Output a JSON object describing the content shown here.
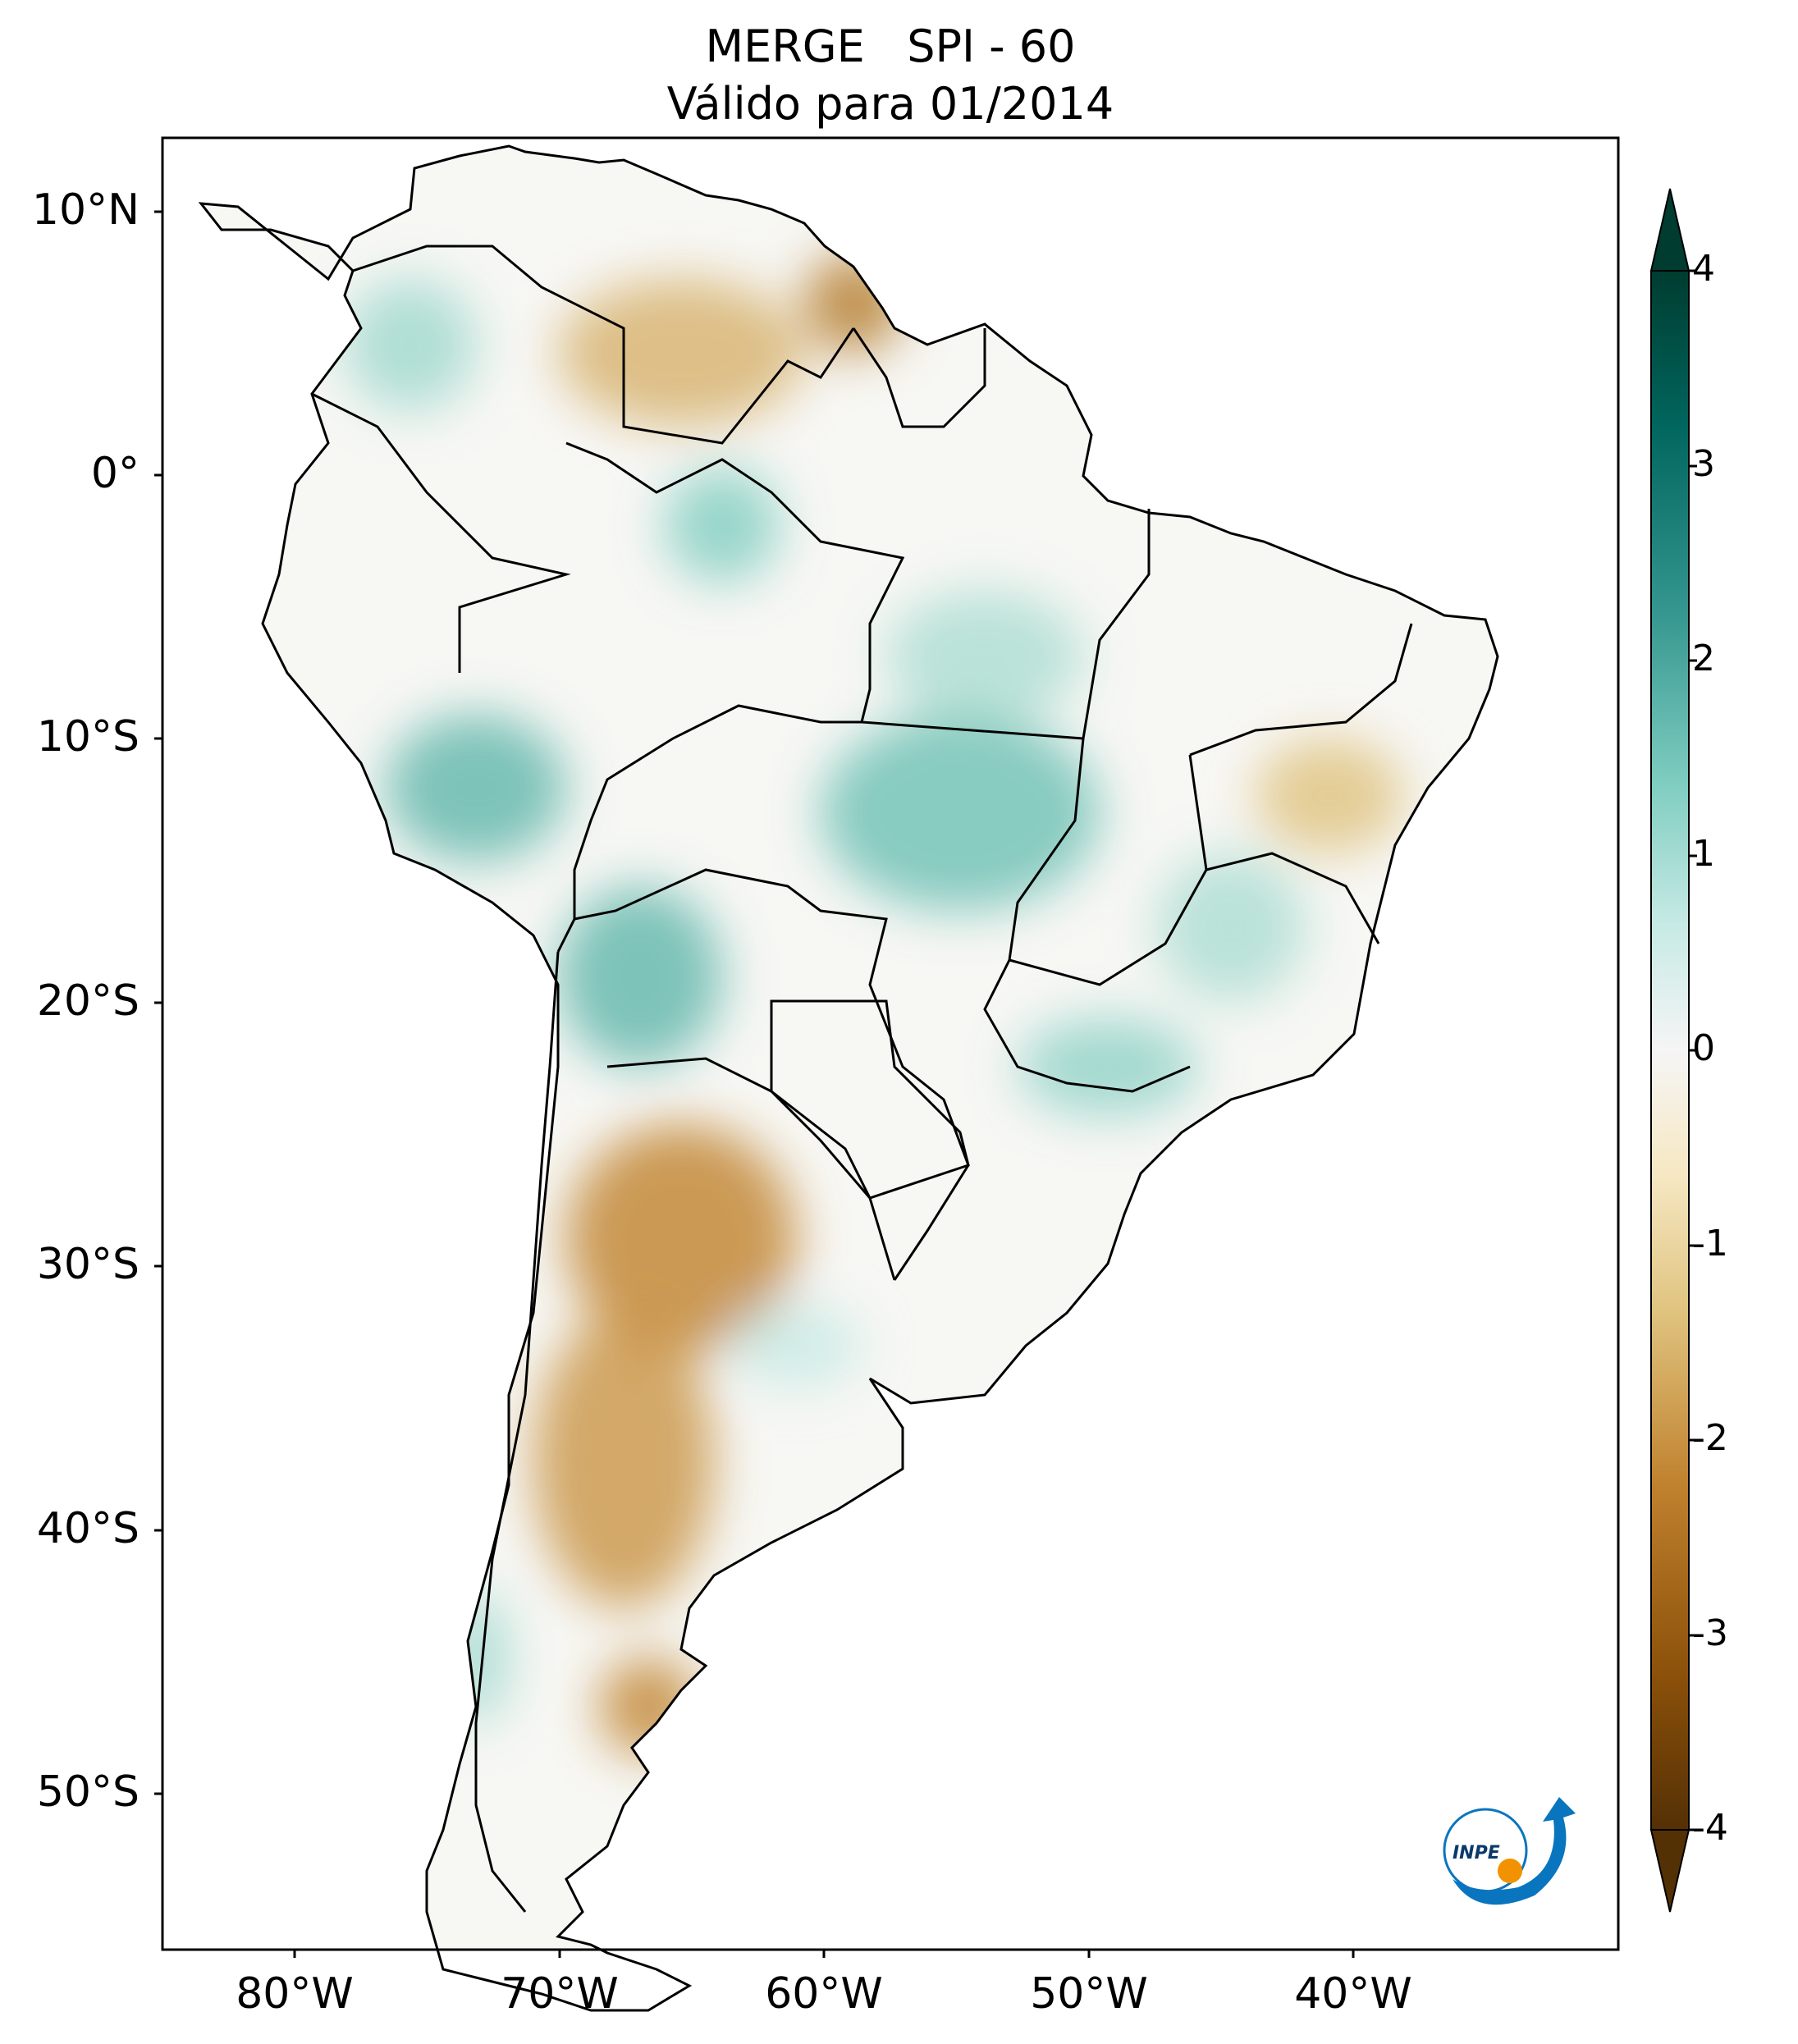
{
  "title": {
    "line1": "MERGE   SPI - 60",
    "line2": "Válido para 01/2014"
  },
  "map": {
    "lat_range": [
      -56,
      12.5
    ],
    "lon_range": [
      -85,
      -30
    ],
    "lat_ticks": [
      {
        "value": 10,
        "label": "10°N"
      },
      {
        "value": 0,
        "label": "0°"
      },
      {
        "value": -10,
        "label": "10°S"
      },
      {
        "value": -20,
        "label": "20°S"
      },
      {
        "value": -30,
        "label": "30°S"
      },
      {
        "value": -40,
        "label": "40°S"
      },
      {
        "value": -50,
        "label": "50°S"
      }
    ],
    "lon_ticks": [
      {
        "value": -80,
        "label": "80°W"
      },
      {
        "value": -70,
        "label": "70°W"
      },
      {
        "value": -60,
        "label": "60°W"
      },
      {
        "value": -50,
        "label": "50°W"
      },
      {
        "value": -40,
        "label": "40°W"
      }
    ]
  },
  "colorbar": {
    "range": [
      -4,
      4
    ],
    "ticks": [
      {
        "value": 4,
        "label": "4"
      },
      {
        "value": 3,
        "label": "3"
      },
      {
        "value": 2,
        "label": "2"
      },
      {
        "value": 1,
        "label": "1"
      },
      {
        "value": 0,
        "label": "0"
      },
      {
        "value": -1,
        "label": "-1"
      },
      {
        "value": -2,
        "label": "-2"
      },
      {
        "value": -3,
        "label": "-3"
      },
      {
        "value": -4,
        "label": "-4"
      }
    ],
    "colors": {
      "wet_max": "#003c30",
      "wet_high": "#01665e",
      "wet_mid": "#35978f",
      "wet_low": "#80cdc1",
      "wet_faint": "#c7eae5",
      "neutral": "#f5f5f5",
      "dry_faint": "#f6e8c3",
      "dry_low": "#dfc27d",
      "dry_mid": "#bf812d",
      "dry_high": "#8c510a",
      "dry_max": "#543005"
    }
  },
  "logo": {
    "text": "INPE",
    "colors": {
      "blue": "#0a75bf",
      "orange": "#f39200"
    }
  }
}
